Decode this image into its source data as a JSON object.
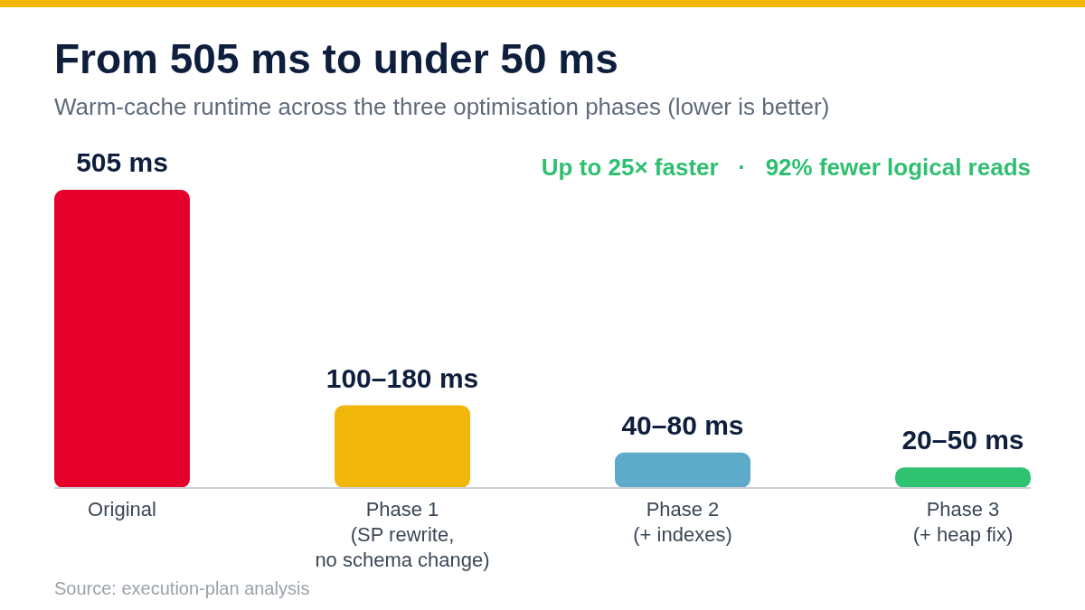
{
  "chart_data": {
    "type": "bar",
    "title": "From 505 ms to under 50 ms",
    "subtitle": "Warm-cache runtime across the three optimisation phases (lower is better)",
    "categories": [
      "Original",
      "Phase 1\n(SP rewrite,\nno schema change)",
      "Phase 2\n(+ indexes)",
      "Phase 3\n(+ heap fix)"
    ],
    "values": [
      505,
      140,
      60,
      35
    ],
    "colors": [
      "#e4002b",
      "#f0b70a",
      "#5eaac9",
      "#2ec271"
    ],
    "value_labels": [
      "505 ms",
      "100–180 ms",
      "40–80 ms",
      "20–50 ms"
    ],
    "tick_labels": "x",
    "annotations": [
      "Up to 25× faster   ·   92% fewer logical reads",
      "Source: execution-plan analysis"
    ]
  }
}
